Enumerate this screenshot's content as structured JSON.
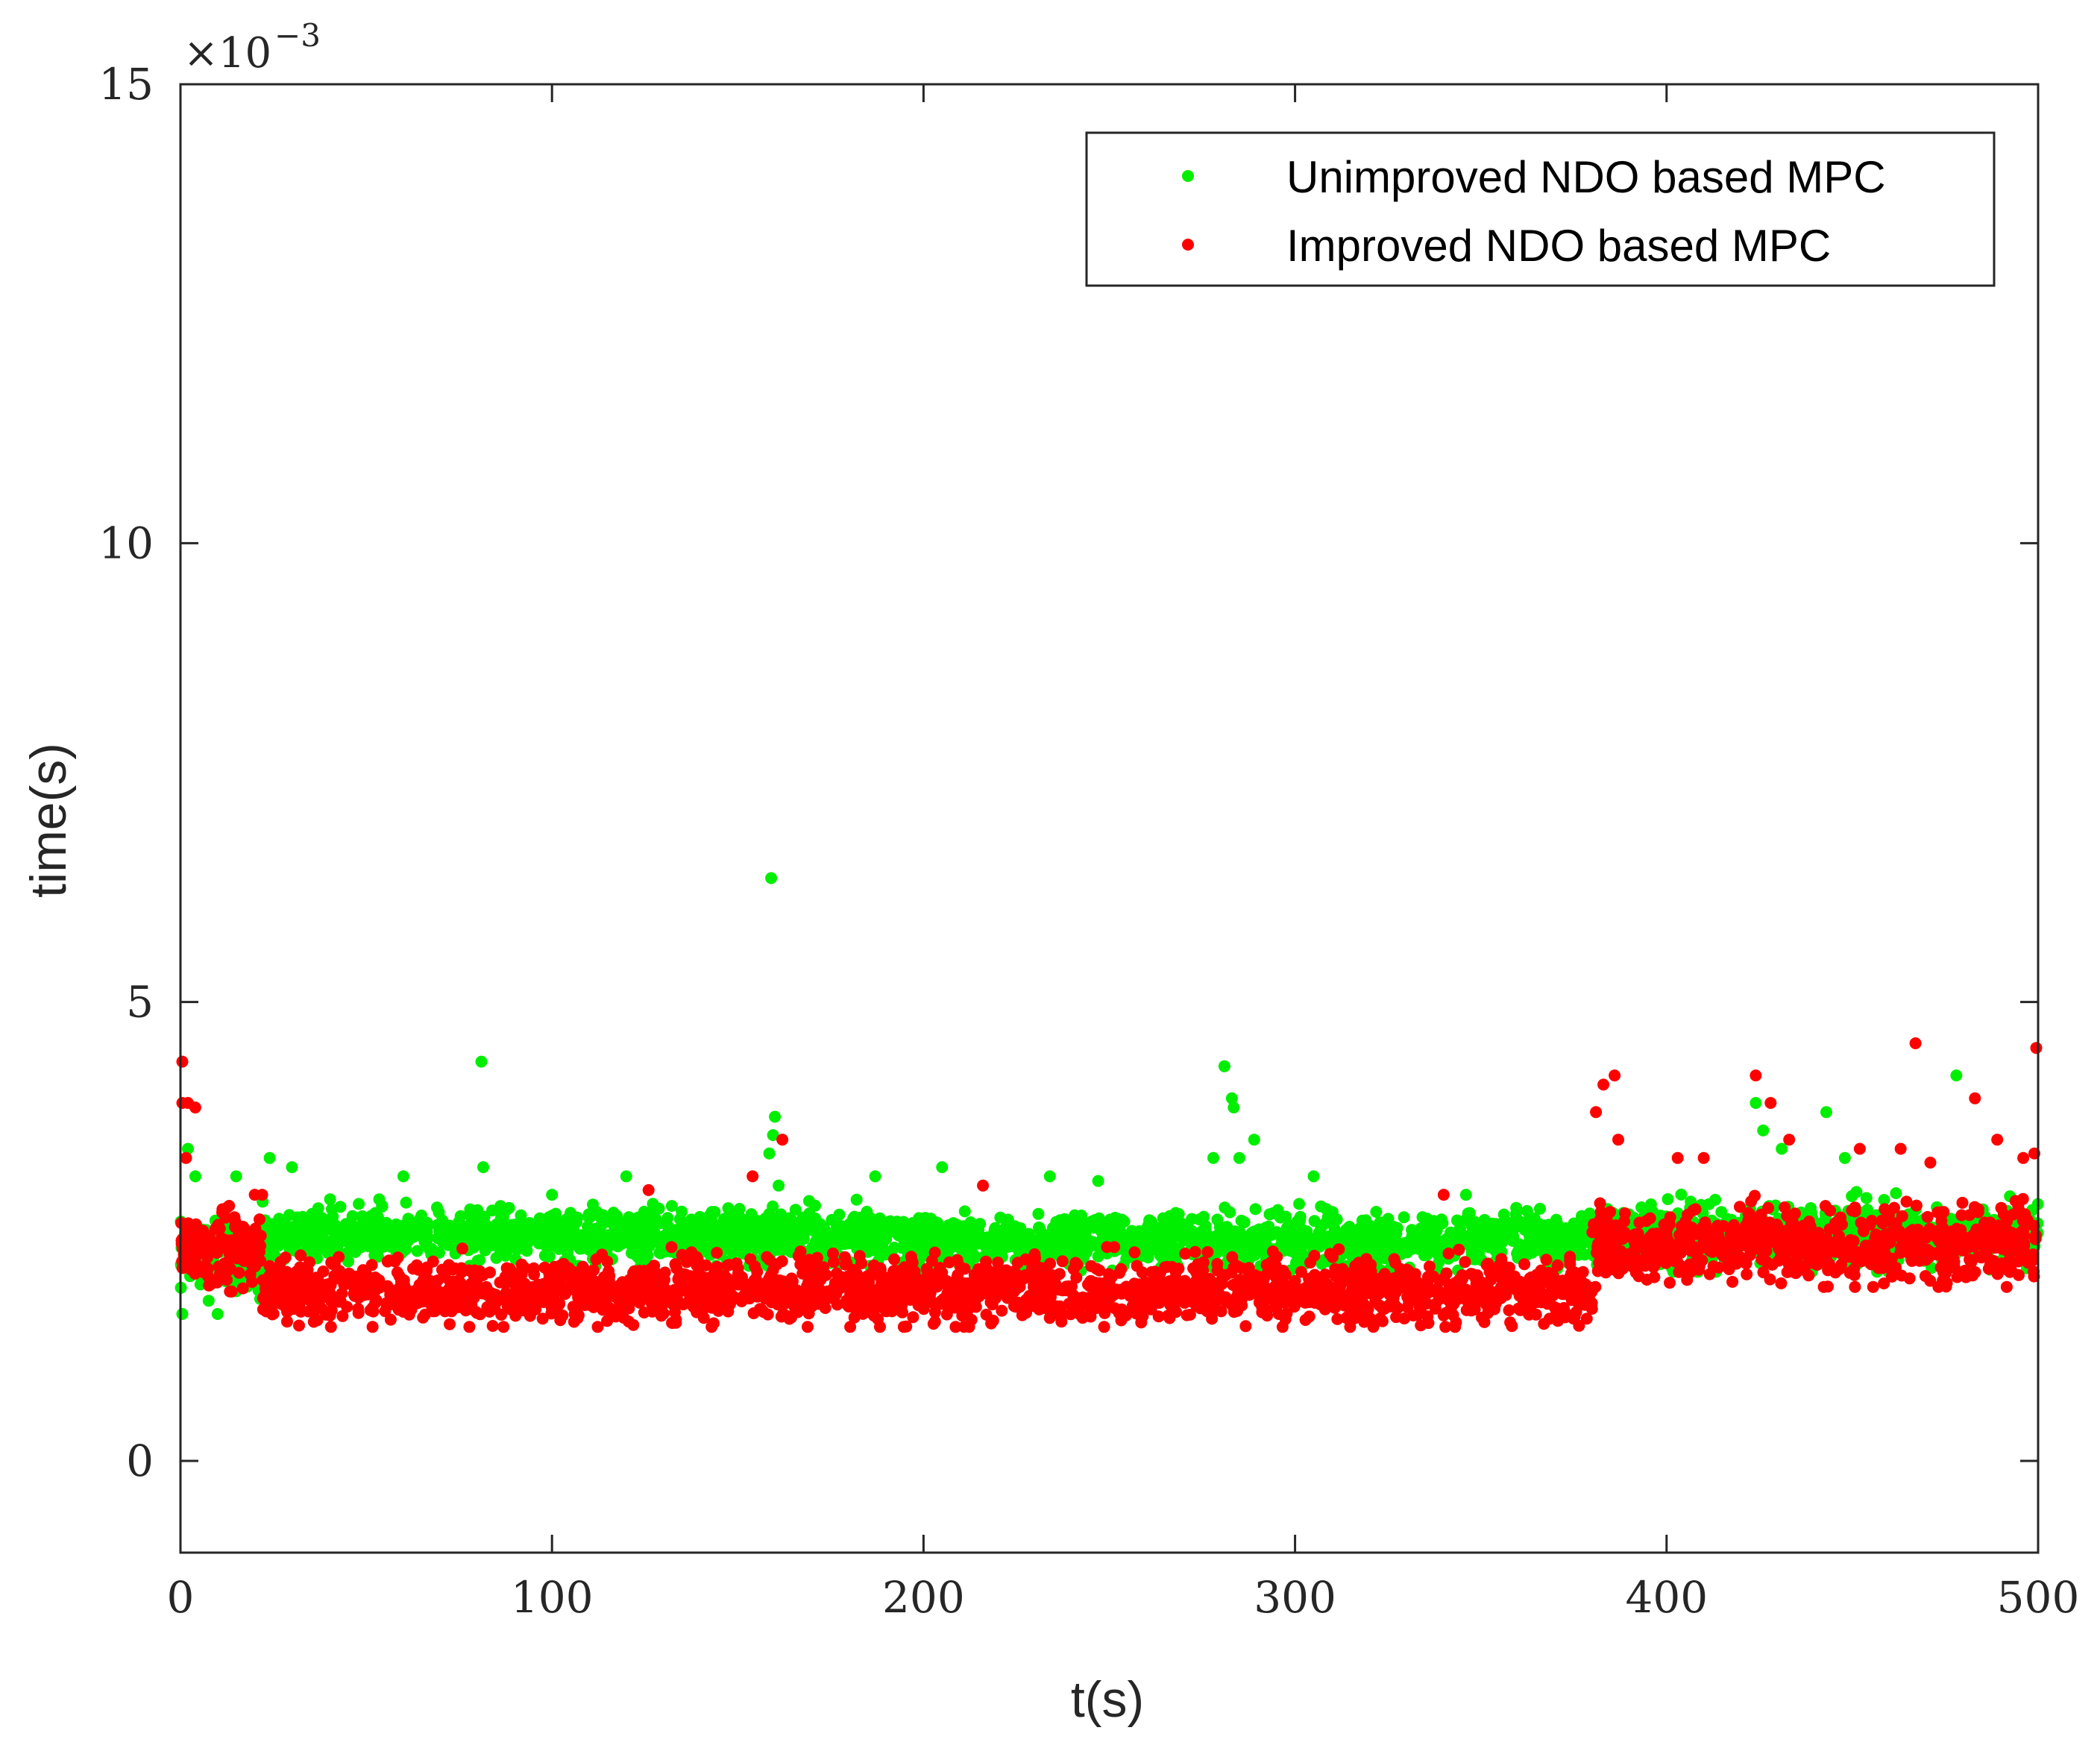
{
  "chart_data": {
    "type": "scatter",
    "title": "",
    "xlabel": "t(s)",
    "ylabel": "time(s)",
    "xlim": [
      0,
      500
    ],
    "ylim": [
      -1,
      15
    ],
    "y_multiplier_label": "×10",
    "y_multiplier_exponent": "−3",
    "grid": false,
    "legend_position": "top-right",
    "x_ticks": [
      {
        "value": 0,
        "label": "0"
      },
      {
        "value": 100,
        "label": "100"
      },
      {
        "value": 200,
        "label": "200"
      },
      {
        "value": 300,
        "label": "300"
      },
      {
        "value": 400,
        "label": "400"
      },
      {
        "value": 500,
        "label": "500"
      }
    ],
    "y_ticks": [
      {
        "value": 0,
        "label": "0"
      },
      {
        "value": 5,
        "label": "5"
      },
      {
        "value": 10,
        "label": "10"
      },
      {
        "value": 15,
        "label": "15"
      }
    ],
    "series": [
      {
        "name": "Unimproved NDO based MPC",
        "color": "#00ee00",
        "segments": [
          {
            "x_start": 0,
            "x_end": 22,
            "y_center": 2.2,
            "y_spread": 0.35
          },
          {
            "x_start": 22,
            "x_end": 195,
            "y_center": 2.45,
            "y_spread": 0.25
          },
          {
            "x_start": 195,
            "x_end": 380,
            "y_center": 2.4,
            "y_spread": 0.25
          },
          {
            "x_start": 380,
            "x_end": 500,
            "y_center": 2.45,
            "y_spread": 0.3
          }
        ],
        "outliers": [
          {
            "x": 0.5,
            "y": 1.6
          },
          {
            "x": 2,
            "y": 3.4
          },
          {
            "x": 4,
            "y": 3.1
          },
          {
            "x": 10,
            "y": 1.6
          },
          {
            "x": 15,
            "y": 3.1
          },
          {
            "x": 24,
            "y": 3.3
          },
          {
            "x": 30,
            "y": 3.2
          },
          {
            "x": 48,
            "y": 2.8
          },
          {
            "x": 60,
            "y": 3.1
          },
          {
            "x": 81,
            "y": 4.35
          },
          {
            "x": 81.5,
            "y": 3.2
          },
          {
            "x": 100,
            "y": 2.9
          },
          {
            "x": 120,
            "y": 3.1
          },
          {
            "x": 159,
            "y": 6.35
          },
          {
            "x": 160,
            "y": 3.75
          },
          {
            "x": 159.5,
            "y": 3.55
          },
          {
            "x": 158.5,
            "y": 3.35
          },
          {
            "x": 161,
            "y": 3.0
          },
          {
            "x": 187,
            "y": 3.1
          },
          {
            "x": 205,
            "y": 3.2
          },
          {
            "x": 234,
            "y": 3.1
          },
          {
            "x": 247,
            "y": 3.05
          },
          {
            "x": 278,
            "y": 3.3
          },
          {
            "x": 281,
            "y": 4.3
          },
          {
            "x": 283,
            "y": 3.95
          },
          {
            "x": 283.5,
            "y": 3.85
          },
          {
            "x": 285,
            "y": 3.3
          },
          {
            "x": 289,
            "y": 3.5
          },
          {
            "x": 305,
            "y": 3.1
          },
          {
            "x": 346,
            "y": 2.9
          },
          {
            "x": 424,
            "y": 3.9
          },
          {
            "x": 426,
            "y": 3.6
          },
          {
            "x": 431,
            "y": 3.4
          },
          {
            "x": 443,
            "y": 3.8
          },
          {
            "x": 448,
            "y": 3.3
          },
          {
            "x": 478,
            "y": 4.2
          }
        ]
      },
      {
        "name": "Improved NDO based MPC",
        "color": "#ff0000",
        "segments": [
          {
            "x_start": 0,
            "x_end": 22,
            "y_center": 2.3,
            "y_spread": 0.35
          },
          {
            "x_start": 22,
            "x_end": 380,
            "y_center": 1.85,
            "y_spread": 0.3
          },
          {
            "x_start": 380,
            "x_end": 500,
            "y_center": 2.35,
            "y_spread": 0.35
          }
        ],
        "outliers": [
          {
            "x": 0.5,
            "y": 4.35
          },
          {
            "x": 0.5,
            "y": 3.9
          },
          {
            "x": 1.5,
            "y": 3.3
          },
          {
            "x": 2,
            "y": 3.9
          },
          {
            "x": 4,
            "y": 3.85
          },
          {
            "x": 20,
            "y": 2.9
          },
          {
            "x": 22,
            "y": 2.9
          },
          {
            "x": 126,
            "y": 2.95
          },
          {
            "x": 154,
            "y": 3.1
          },
          {
            "x": 162,
            "y": 3.5
          },
          {
            "x": 216,
            "y": 3.0
          },
          {
            "x": 340,
            "y": 2.9
          },
          {
            "x": 381,
            "y": 3.8
          },
          {
            "x": 383,
            "y": 4.1
          },
          {
            "x": 386,
            "y": 4.2
          },
          {
            "x": 387,
            "y": 3.5
          },
          {
            "x": 403,
            "y": 3.3
          },
          {
            "x": 410,
            "y": 3.3
          },
          {
            "x": 424,
            "y": 4.2
          },
          {
            "x": 428,
            "y": 3.9
          },
          {
            "x": 433,
            "y": 3.5
          },
          {
            "x": 452,
            "y": 3.4
          },
          {
            "x": 463,
            "y": 3.4
          },
          {
            "x": 467,
            "y": 4.55
          },
          {
            "x": 471,
            "y": 3.25
          },
          {
            "x": 483,
            "y": 3.95
          },
          {
            "x": 489,
            "y": 3.5
          },
          {
            "x": 496,
            "y": 3.3
          },
          {
            "x": 499.5,
            "y": 4.5
          },
          {
            "x": 499,
            "y": 3.35
          }
        ]
      }
    ]
  }
}
